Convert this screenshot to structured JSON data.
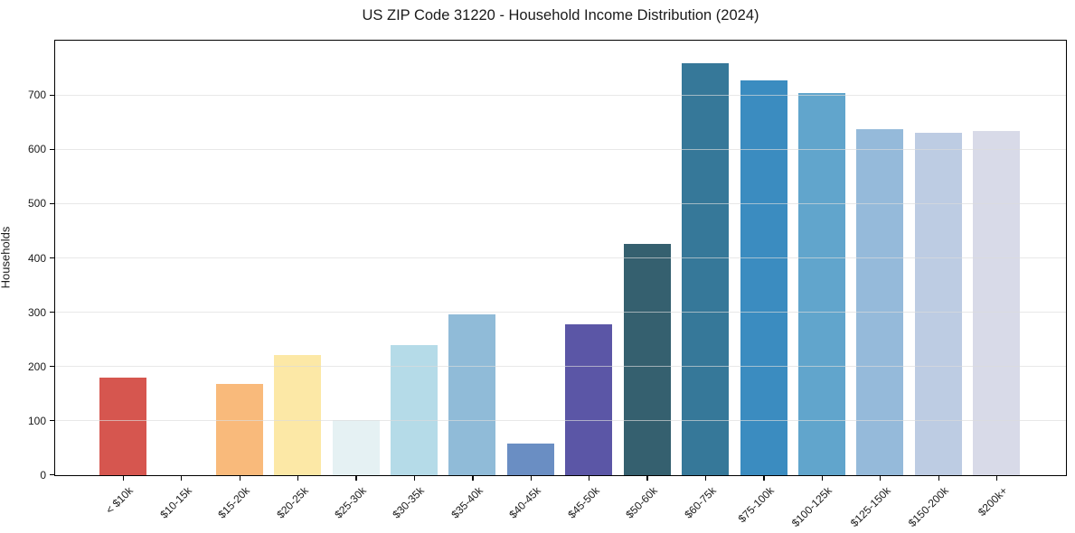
{
  "chart_data": {
    "type": "bar",
    "title": "US ZIP Code 31220 - Household Income Distribution (2024)",
    "xlabel": "",
    "ylabel": "Households",
    "ylim": [
      0,
      800
    ],
    "yticks": [
      0,
      100,
      200,
      300,
      400,
      500,
      600,
      700
    ],
    "grid": "horizontal",
    "legend": "none",
    "categories": [
      "< $10k",
      "$10-15k",
      "$15-20k",
      "$20-25k",
      "$25-30k",
      "$30-35k",
      "$35-40k",
      "$40-45k",
      "$45-50k",
      "$50-60k",
      "$60-75k",
      "$75-100k",
      "$100-125k",
      "$125-150k",
      "$150-200k",
      "$200k+"
    ],
    "values": [
      180,
      0,
      168,
      222,
      102,
      240,
      297,
      58,
      279,
      427,
      760,
      728,
      705,
      638,
      631,
      635
    ],
    "bar_colors": [
      "#d6564f",
      "#eb9a5f",
      "#f9ba7b",
      "#fce8a6",
      "#e5f1f3",
      "#b5dbe8",
      "#90bbd8",
      "#6a8ec3",
      "#5b56a6",
      "#35606f",
      "#367899",
      "#3b8cc0",
      "#61a5cc",
      "#95bada",
      "#bdcce3",
      "#d8dae8"
    ],
    "axis_color": "#000000",
    "gridline_color": "#e8e8e8",
    "background_color": "#ffffff"
  }
}
